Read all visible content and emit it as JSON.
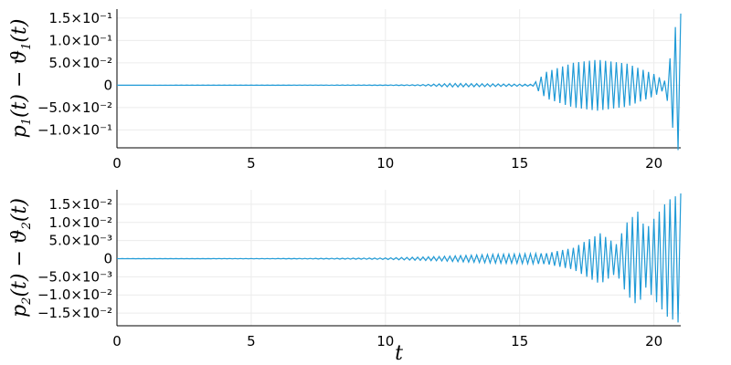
{
  "chart_data": [
    {
      "type": "line",
      "ylabel": {
        "p": "p",
        "sub1": "1",
        "t1": "(t) − ϑ",
        "sub2": "1",
        "t2": "(t)"
      },
      "xlabel": "",
      "xlim": [
        0,
        21
      ],
      "ylim": [
        -0.14,
        0.17
      ],
      "xticks": [
        {
          "value": 0,
          "label": "0"
        },
        {
          "value": 5,
          "label": "5"
        },
        {
          "value": 10,
          "label": "10"
        },
        {
          "value": 15,
          "label": "15"
        },
        {
          "value": 20,
          "label": "20"
        }
      ],
      "yticks": [
        {
          "value": 0.15,
          "label": "1.5×10⁻¹"
        },
        {
          "value": 0.1,
          "label": "1.0×10⁻¹"
        },
        {
          "value": 0.05,
          "label": "5.0×10⁻²"
        },
        {
          "value": 0,
          "label": "0"
        },
        {
          "value": -0.05,
          "label": "−5.0×10⁻²"
        },
        {
          "value": -0.1,
          "label": "−1.0×10⁻¹"
        }
      ],
      "grid": true,
      "series": [
        {
          "color": "#1f9ad6",
          "oscillation": {
            "period": 0.2
          },
          "envelope": [
            [
              0,
              0.0001
            ],
            [
              5,
              0.0002
            ],
            [
              10,
              0.0005
            ],
            [
              11.2,
              0.001
            ],
            [
              12.5,
              0.004
            ],
            [
              14,
              0.003
            ],
            [
              15.5,
              0.002
            ],
            [
              16,
              0.03
            ],
            [
              17,
              0.05
            ],
            [
              17.9,
              0.057
            ],
            [
              19,
              0.048
            ],
            [
              20,
              0.025
            ],
            [
              20.4,
              0.01
            ],
            [
              20.6,
              0.06
            ],
            [
              20.8,
              0.13
            ],
            [
              21,
              0.16
            ]
          ]
        }
      ]
    },
    {
      "type": "line",
      "ylabel": {
        "p": "p",
        "sub1": "2",
        "t1": "(t) − ϑ",
        "sub2": "2",
        "t2": "(t)"
      },
      "xlabel": "t",
      "xlim": [
        0,
        21
      ],
      "ylim": [
        -0.0185,
        0.019
      ],
      "xticks": [
        {
          "value": 0,
          "label": "0"
        },
        {
          "value": 5,
          "label": "5"
        },
        {
          "value": 10,
          "label": "10"
        },
        {
          "value": 15,
          "label": "15"
        },
        {
          "value": 20,
          "label": "20"
        }
      ],
      "yticks": [
        {
          "value": 0.015,
          "label": "1.5×10⁻²"
        },
        {
          "value": 0.01,
          "label": "1.0×10⁻²"
        },
        {
          "value": 0.005,
          "label": "5.0×10⁻³"
        },
        {
          "value": 0,
          "label": "0"
        },
        {
          "value": -0.005,
          "label": "−5.0×10⁻³"
        },
        {
          "value": -0.01,
          "label": "−1.0×10⁻²"
        },
        {
          "value": -0.015,
          "label": "−1.5×10⁻²"
        }
      ],
      "grid": true,
      "series": [
        {
          "color": "#1f9ad6",
          "oscillation": {
            "period": 0.2
          },
          "envelope": [
            [
              0,
              2e-05
            ],
            [
              6,
              5e-05
            ],
            [
              8,
              0.0001
            ],
            [
              10,
              0.0002
            ],
            [
              12,
              0.0006
            ],
            [
              14,
              0.0012
            ],
            [
              15,
              0.0013
            ],
            [
              16,
              0.0015
            ],
            [
              17,
              0.003
            ],
            [
              17.5,
              0.005
            ],
            [
              18,
              0.007
            ],
            [
              18.6,
              0.004
            ],
            [
              19,
              0.01
            ],
            [
              19.4,
              0.013
            ],
            [
              19.7,
              0.008
            ],
            [
              20,
              0.011
            ],
            [
              20.5,
              0.016
            ],
            [
              21,
              0.018
            ]
          ]
        }
      ]
    }
  ]
}
